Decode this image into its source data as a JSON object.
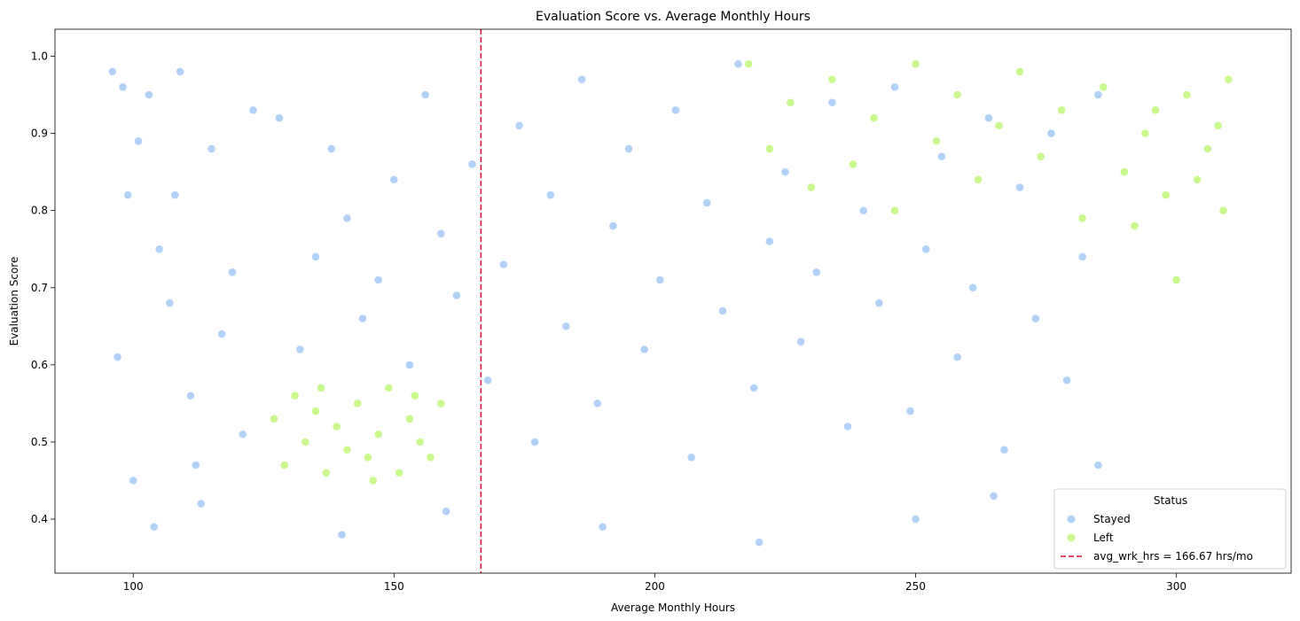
{
  "chart_data": {
    "type": "scatter",
    "title": "Evaluation Score vs. Average Monthly Hours",
    "xlabel": "Average Monthly Hours",
    "ylabel": "Evaluation Score",
    "xlim": [
      85,
      322
    ],
    "ylim": [
      0.33,
      1.035
    ],
    "xticks": [
      100,
      150,
      200,
      250,
      300
    ],
    "yticks": [
      0.4,
      0.5,
      0.6,
      0.7,
      0.8,
      0.9,
      1.0
    ],
    "grid": false,
    "legend": {
      "title": "Status",
      "placement": "lower-right",
      "entries": [
        "Stayed",
        "Left",
        "avg_wrk_hrs = 166.67 hrs/mo"
      ]
    },
    "reference_line": {
      "label": "avg_wrk_hrs = 166.67 hrs/mo",
      "x": 166.67,
      "color": "#dc143c",
      "style": "dashed"
    },
    "series": [
      {
        "name": "Stayed",
        "color": "#7fb3f5",
        "values": [
          [
            96,
            0.98
          ],
          [
            97,
            0.61
          ],
          [
            98,
            0.96
          ],
          [
            99,
            0.82
          ],
          [
            101,
            0.89
          ],
          [
            103,
            0.95
          ],
          [
            105,
            0.75
          ],
          [
            107,
            0.68
          ],
          [
            109,
            0.98
          ],
          [
            111,
            0.56
          ],
          [
            113,
            0.42
          ],
          [
            115,
            0.88
          ],
          [
            117,
            0.64
          ],
          [
            119,
            0.72
          ],
          [
            121,
            0.51
          ],
          [
            123,
            0.93
          ],
          [
            100,
            0.45
          ],
          [
            104,
            0.39
          ],
          [
            108,
            0.82
          ],
          [
            112,
            0.47
          ],
          [
            128,
            0.92
          ],
          [
            132,
            0.62
          ],
          [
            135,
            0.74
          ],
          [
            138,
            0.88
          ],
          [
            141,
            0.79
          ],
          [
            144,
            0.66
          ],
          [
            147,
            0.71
          ],
          [
            150,
            0.84
          ],
          [
            153,
            0.6
          ],
          [
            156,
            0.95
          ],
          [
            159,
            0.77
          ],
          [
            162,
            0.69
          ],
          [
            165,
            0.86
          ],
          [
            168,
            0.58
          ],
          [
            171,
            0.73
          ],
          [
            174,
            0.91
          ],
          [
            177,
            0.5
          ],
          [
            180,
            0.82
          ],
          [
            183,
            0.65
          ],
          [
            186,
            0.97
          ],
          [
            189,
            0.55
          ],
          [
            192,
            0.78
          ],
          [
            195,
            0.88
          ],
          [
            198,
            0.62
          ],
          [
            201,
            0.71
          ],
          [
            204,
            0.93
          ],
          [
            207,
            0.48
          ],
          [
            210,
            0.81
          ],
          [
            213,
            0.67
          ],
          [
            216,
            0.99
          ],
          [
            219,
            0.57
          ],
          [
            222,
            0.76
          ],
          [
            225,
            0.85
          ],
          [
            228,
            0.63
          ],
          [
            231,
            0.72
          ],
          [
            234,
            0.94
          ],
          [
            237,
            0.52
          ],
          [
            240,
            0.8
          ],
          [
            243,
            0.68
          ],
          [
            246,
            0.96
          ],
          [
            249,
            0.54
          ],
          [
            252,
            0.75
          ],
          [
            255,
            0.87
          ],
          [
            258,
            0.61
          ],
          [
            261,
            0.7
          ],
          [
            264,
            0.92
          ],
          [
            267,
            0.49
          ],
          [
            270,
            0.83
          ],
          [
            273,
            0.66
          ],
          [
            276,
            0.9
          ],
          [
            279,
            0.58
          ],
          [
            282,
            0.74
          ],
          [
            285,
            0.95
          ],
          [
            140,
            0.38
          ],
          [
            160,
            0.41
          ],
          [
            190,
            0.39
          ],
          [
            220,
            0.37
          ],
          [
            250,
            0.4
          ],
          [
            265,
            0.43
          ],
          [
            285,
            0.47
          ]
        ]
      },
      {
        "name": "Left",
        "color": "#a5f540",
        "values": [
          [
            127,
            0.53
          ],
          [
            129,
            0.47
          ],
          [
            131,
            0.56
          ],
          [
            133,
            0.5
          ],
          [
            135,
            0.54
          ],
          [
            137,
            0.46
          ],
          [
            139,
            0.52
          ],
          [
            141,
            0.49
          ],
          [
            143,
            0.55
          ],
          [
            145,
            0.48
          ],
          [
            147,
            0.51
          ],
          [
            149,
            0.57
          ],
          [
            151,
            0.46
          ],
          [
            153,
            0.53
          ],
          [
            155,
            0.5
          ],
          [
            157,
            0.48
          ],
          [
            159,
            0.55
          ],
          [
            136,
            0.57
          ],
          [
            146,
            0.45
          ],
          [
            154,
            0.56
          ],
          [
            218,
            0.99
          ],
          [
            222,
            0.88
          ],
          [
            226,
            0.94
          ],
          [
            230,
            0.83
          ],
          [
            234,
            0.97
          ],
          [
            238,
            0.86
          ],
          [
            242,
            0.92
          ],
          [
            246,
            0.8
          ],
          [
            250,
            0.99
          ],
          [
            254,
            0.89
          ],
          [
            258,
            0.95
          ],
          [
            262,
            0.84
          ],
          [
            266,
            0.91
          ],
          [
            270,
            0.98
          ],
          [
            274,
            0.87
          ],
          [
            278,
            0.93
          ],
          [
            282,
            0.79
          ],
          [
            286,
            0.96
          ],
          [
            290,
            0.85
          ],
          [
            294,
            0.9
          ],
          [
            298,
            0.82
          ],
          [
            302,
            0.95
          ],
          [
            306,
            0.88
          ],
          [
            309,
            0.8
          ],
          [
            310,
            0.97
          ],
          [
            292,
            0.78
          ],
          [
            296,
            0.93
          ],
          [
            304,
            0.84
          ],
          [
            308,
            0.91
          ],
          [
            300,
            0.71
          ]
        ]
      }
    ]
  }
}
